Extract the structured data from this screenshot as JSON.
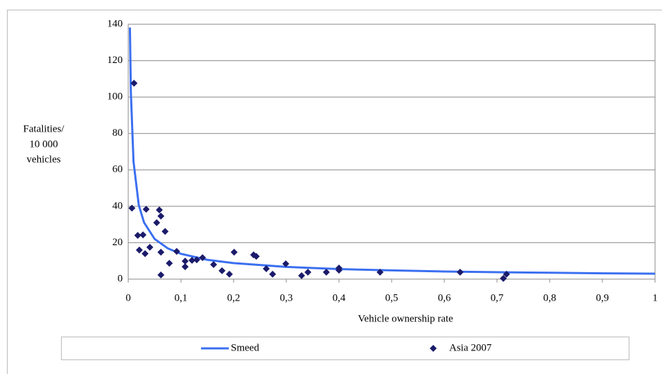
{
  "chart_data": {
    "type": "scatter",
    "x_label": "Vehicle ownership rate",
    "y_label": [
      "Fatalities/",
      "10 000",
      "vehicles"
    ],
    "xlim": [
      0,
      1
    ],
    "ylim": [
      0,
      140
    ],
    "xticks": [
      0,
      {
        "value": 0.1,
        "label": "0,1"
      },
      {
        "value": 0.2,
        "label": "0,2"
      },
      {
        "value": 0.3,
        "label": "0,3"
      },
      {
        "value": 0.4,
        "label": "0,4"
      },
      {
        "value": 0.5,
        "label": "0,5"
      },
      {
        "value": 0.6,
        "label": "0,6"
      },
      {
        "value": 0.7,
        "label": "0,7"
      },
      {
        "value": 0.8,
        "label": "0,8"
      },
      {
        "value": 0.9,
        "label": "0,9"
      },
      1
    ],
    "yticks": [
      0,
      20,
      40,
      60,
      80,
      100,
      120,
      140
    ],
    "grid": true,
    "legend": "bottom",
    "series": [
      {
        "name": "Smeed",
        "kind": "line",
        "color": "#3a6ff0",
        "x": [
          0.0032,
          0.005,
          0.01,
          0.02,
          0.03,
          0.05,
          0.075,
          0.1,
          0.15,
          0.2,
          0.3,
          0.4,
          0.5,
          0.6,
          0.7,
          0.8,
          0.9,
          1
        ],
        "values": [
          138.2,
          102.6,
          64.6,
          40.7,
          31.1,
          22.1,
          16.9,
          13.9,
          10.6,
          8.8,
          6.7,
          5.5,
          4.8,
          4.2,
          3.8,
          3.5,
          3.2,
          3.0
        ]
      },
      {
        "name": "Asia 2007",
        "kind": "scatter",
        "color": "#1b1b6b",
        "x": [
          0.011,
          0.007,
          0.018,
          0.028,
          0.021,
          0.032,
          0.041,
          0.034,
          0.054,
          0.059,
          0.062,
          0.07,
          0.062,
          0.062,
          0.078,
          0.092,
          0.108,
          0.108,
          0.121,
          0.13,
          0.141,
          0.162,
          0.178,
          0.192,
          0.201,
          0.238,
          0.243,
          0.262,
          0.274,
          0.299,
          0.329,
          0.341,
          0.376,
          0.4,
          0.4,
          0.478,
          0.63,
          0.712,
          0.718
        ],
        "values": [
          107.6,
          39,
          24,
          24.3,
          16,
          14,
          17.5,
          38.4,
          31,
          38,
          34.6,
          26.2,
          14.8,
          2.3,
          8.7,
          15.2,
          9.9,
          6.8,
          10.3,
          10.6,
          11.8,
          8,
          4.6,
          2.7,
          14.8,
          13.3,
          12.5,
          5.7,
          2.7,
          8.4,
          1.9,
          3.8,
          3.8,
          6.1,
          4.9,
          3.8,
          3.8,
          0.4,
          2.7
        ]
      }
    ]
  }
}
